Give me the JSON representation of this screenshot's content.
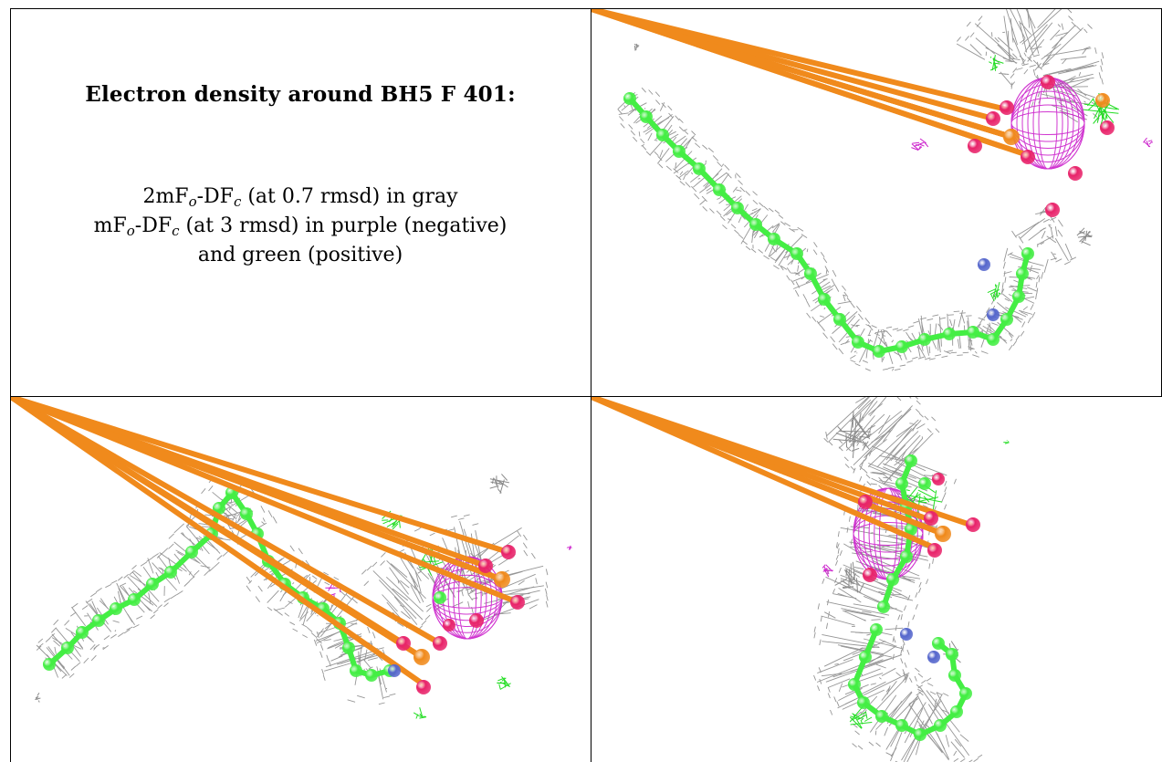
{
  "caption": {
    "title": "Electron density around BH5 F 401:",
    "line1": {
      "a": "2mF",
      "sub1": "o",
      "b": "-DF",
      "sub2": "c",
      "c": " (at 0.7 rmsd) in gray"
    },
    "line2": {
      "a": "mF",
      "sub1": "o",
      "b": "-DF",
      "sub2": "c",
      "c": " (at 3 rmsd) in purple (negative)"
    },
    "line3": "and green (positive)"
  },
  "colors": {
    "mesh_2fofc": "#8a8a8a",
    "positive": "#22dd22",
    "negative": "#cc22cc",
    "carbon": "#44ee44",
    "oxygen": "#e8236a",
    "phosphorus": "#f08a1c",
    "nitrogen": "#5566cc"
  },
  "panels": [
    {
      "name": "view-top-right"
    },
    {
      "name": "view-bottom-left"
    },
    {
      "name": "view-bottom-right"
    }
  ]
}
